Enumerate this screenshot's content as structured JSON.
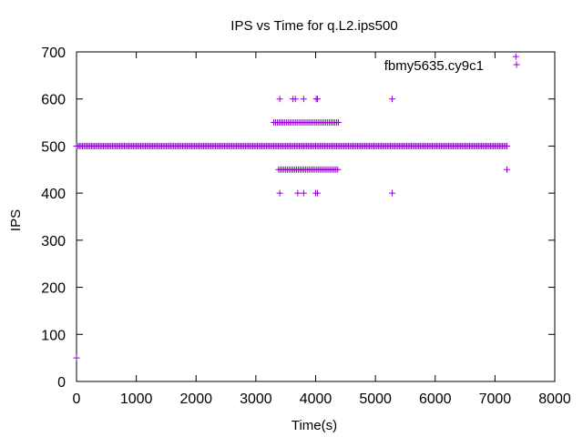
{
  "chart_data": {
    "type": "scatter",
    "title": "IPS vs Time for q.L2.ips500",
    "xlabel": "Time(s)",
    "ylabel": "IPS",
    "xlim": [
      0,
      8000
    ],
    "ylim": [
      0,
      700
    ],
    "x_ticks": [
      "0",
      "1000",
      "2000",
      "3000",
      "4000",
      "5000",
      "6000",
      "7000",
      "8000"
    ],
    "y_ticks": [
      "0",
      "100",
      "200",
      "300",
      "400",
      "500",
      "600",
      "700"
    ],
    "grid": false,
    "legend_position": "top-right",
    "marker_color": "#9400d3",
    "series": [
      {
        "name": "fbmy5635.cy9c1",
        "points": [
          {
            "x": 0,
            "y": 50
          },
          {
            "x": 3400,
            "y": 600
          },
          {
            "x": 3620,
            "y": 600
          },
          {
            "x": 3660,
            "y": 600
          },
          {
            "x": 3800,
            "y": 600
          },
          {
            "x": 4010,
            "y": 600
          },
          {
            "x": 4030,
            "y": 600
          },
          {
            "x": 5280,
            "y": 600
          },
          {
            "x": 3400,
            "y": 400
          },
          {
            "x": 3700,
            "y": 400
          },
          {
            "x": 3800,
            "y": 400
          },
          {
            "x": 4000,
            "y": 400
          },
          {
            "x": 4030,
            "y": 400
          },
          {
            "x": 5280,
            "y": 400
          },
          {
            "x": 7200,
            "y": 450
          },
          {
            "x": 7350,
            "y": 690
          }
        ],
        "bands": [
          {
            "y": 500,
            "x_from": 0,
            "x_to": 7200,
            "step": 25
          },
          {
            "y": 550,
            "x_from": 3300,
            "x_to": 4380,
            "step": 30
          },
          {
            "y": 450,
            "x_from": 3380,
            "x_to": 4380,
            "step": 30
          }
        ]
      }
    ]
  }
}
